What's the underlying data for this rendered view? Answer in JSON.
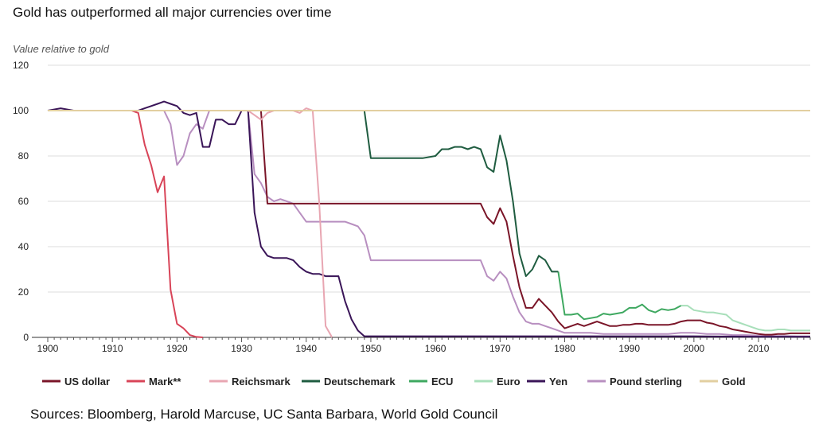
{
  "chart_data": {
    "type": "line",
    "title": "Gold has outperformed all major currencies over time",
    "ylabel": "Value relative to gold",
    "xlabel": "",
    "xlim": [
      1900,
      2018
    ],
    "ylim": [
      0,
      120
    ],
    "xticks": [
      1900,
      1910,
      1920,
      1930,
      1940,
      1950,
      1960,
      1970,
      1980,
      1990,
      2000,
      2010
    ],
    "yticks": [
      0,
      20,
      40,
      60,
      80,
      100,
      120
    ],
    "grid": "horizontal",
    "legend_position": "bottom",
    "series": [
      {
        "name": "Pound sterling",
        "color": "#b88fc0",
        "x": [
          1900,
          1905,
          1910,
          1913,
          1914,
          1917,
          1918,
          1919,
          1920,
          1921,
          1922,
          1923,
          1924,
          1925,
          1930,
          1931,
          1932,
          1933,
          1934,
          1935,
          1936,
          1937,
          1938,
          1939,
          1940,
          1943,
          1945,
          1946,
          1947,
          1948,
          1949,
          1950,
          1955,
          1960,
          1965,
          1967,
          1968,
          1969,
          1970,
          1971,
          1972,
          1973,
          1974,
          1975,
          1976,
          1977,
          1978,
          1979,
          1980,
          1982,
          1984,
          1986,
          1988,
          1990,
          1992,
          1994,
          1996,
          1998,
          2000,
          2002,
          2004,
          2006,
          2008,
          2010,
          2012,
          2014,
          2016,
          2018
        ],
        "y": [
          100,
          100,
          100,
          100,
          100,
          100,
          100,
          94,
          76,
          80,
          90,
          94,
          92,
          100,
          100,
          100,
          72,
          68,
          62,
          60,
          61,
          60,
          59,
          55,
          51,
          51,
          51,
          51,
          50,
          49,
          45,
          34,
          34,
          34,
          34,
          34,
          27,
          25,
          29,
          26,
          18,
          11,
          7,
          6,
          6,
          5,
          4,
          3,
          2,
          2,
          2,
          1.5,
          1.5,
          1.5,
          1.5,
          1.5,
          1.5,
          2,
          2,
          1.5,
          1.5,
          1,
          1,
          0.8,
          0.6,
          0.6,
          0.5,
          0.5
        ]
      },
      {
        "name": "Euro",
        "color": "#a8dfba",
        "x": [
          1998,
          1999,
          2000,
          2001,
          2002,
          2003,
          2004,
          2005,
          2006,
          2007,
          2008,
          2009,
          2010,
          2011,
          2012,
          2013,
          2014,
          2015,
          2016,
          2017,
          2018
        ],
        "y": [
          14,
          14,
          12,
          11.5,
          11,
          11,
          10.5,
          10,
          7.5,
          6.5,
          5.5,
          4.5,
          3.5,
          3,
          3,
          3.5,
          3.5,
          3,
          3,
          3,
          3
        ]
      },
      {
        "name": "ECU",
        "color": "#3ea860",
        "x": [
          1979,
          1980,
          1981,
          1982,
          1983,
          1984,
          1985,
          1986,
          1987,
          1988,
          1989,
          1990,
          1991,
          1992,
          1993,
          1994,
          1995,
          1996,
          1997,
          1998
        ],
        "y": [
          29,
          10,
          10,
          10.5,
          8,
          8.5,
          9,
          10.5,
          10,
          10.5,
          11,
          13,
          13,
          14.5,
          12,
          11,
          12.5,
          12,
          12.5,
          14
        ]
      },
      {
        "name": "Deutschemark",
        "color": "#1f5c40",
        "x": [
          1948,
          1949,
          1950,
          1955,
          1958,
          1960,
          1961,
          1962,
          1963,
          1964,
          1965,
          1966,
          1967,
          1968,
          1969,
          1970,
          1971,
          1972,
          1973,
          1974,
          1975,
          1976,
          1977,
          1978,
          1979
        ],
        "y": [
          100,
          100,
          79,
          79,
          79,
          80,
          83,
          83,
          84,
          84,
          83,
          84,
          83,
          75,
          73,
          89,
          78,
          60,
          37,
          27,
          30,
          36,
          34,
          29,
          29
        ]
      },
      {
        "name": "US dollar",
        "color": "#7a1528",
        "x": [
          1900,
          1933,
          1934,
          1935,
          1940,
          1950,
          1960,
          1967,
          1968,
          1969,
          1970,
          1971,
          1972,
          1973,
          1974,
          1975,
          1976,
          1977,
          1978,
          1979,
          1980,
          1981,
          1982,
          1983,
          1984,
          1985,
          1986,
          1987,
          1988,
          1989,
          1990,
          1991,
          1992,
          1993,
          1994,
          1995,
          1996,
          1997,
          1998,
          1999,
          2000,
          2001,
          2002,
          2003,
          2004,
          2005,
          2006,
          2007,
          2008,
          2009,
          2010,
          2011,
          2012,
          2013,
          2014,
          2015,
          2016,
          2017,
          2018
        ],
        "y": [
          100,
          100,
          59,
          59,
          59,
          59,
          59,
          59,
          53,
          50,
          57,
          51,
          36,
          22,
          13,
          13,
          17,
          14,
          11,
          7,
          4,
          5,
          6,
          5,
          6,
          7,
          6,
          5,
          5,
          5.5,
          5.5,
          6,
          6,
          5.5,
          5.5,
          5.5,
          5.5,
          6,
          7,
          7.5,
          7.5,
          7.5,
          6.5,
          6,
          5,
          4.5,
          3.5,
          3,
          2.5,
          2,
          1.5,
          1.2,
          1.2,
          1.5,
          1.5,
          1.8,
          1.8,
          1.8,
          1.8
        ]
      },
      {
        "name": "Yen",
        "color": "#3a1558",
        "x": [
          1900,
          1902,
          1904,
          1905,
          1908,
          1910,
          1912,
          1914,
          1915,
          1916,
          1917,
          1918,
          1919,
          1920,
          1921,
          1922,
          1923,
          1924,
          1925,
          1926,
          1927,
          1928,
          1929,
          1930,
          1931,
          1932,
          1933,
          1934,
          1935,
          1936,
          1937,
          1938,
          1939,
          1940,
          1941,
          1942,
          1943,
          1944,
          1945,
          1946,
          1947,
          1948,
          1949,
          1955,
          1960,
          1965,
          1970,
          1980,
          1990,
          2000,
          2010,
          2018
        ],
        "y": [
          100,
          101,
          100,
          100,
          100,
          100,
          100,
          100,
          101,
          102,
          103,
          104,
          103,
          102,
          99,
          98,
          99,
          84,
          84,
          96,
          96,
          94,
          94,
          100,
          100,
          55,
          40,
          36,
          35,
          35,
          35,
          34,
          31,
          29,
          28,
          28,
          27,
          27,
          27,
          16,
          8,
          3,
          0.5,
          0.5,
          0.5,
          0.5,
          0.5,
          0.5,
          0.5,
          0.5,
          0.3,
          0.3
        ]
      },
      {
        "name": "Reichsmark",
        "color": "#e8a6b2",
        "x": [
          1924,
          1930,
          1931,
          1932,
          1933,
          1934,
          1935,
          1938,
          1939,
          1940,
          1941,
          1942,
          1943,
          1944
        ],
        "y": [
          100,
          100,
          100,
          98,
          96,
          99,
          100,
          100,
          99,
          101,
          100,
          60,
          5,
          0
        ]
      },
      {
        "name": "Mark**",
        "color": "#d84458",
        "x": [
          1900,
          1913,
          1914,
          1915,
          1916,
          1917,
          1918,
          1919,
          1920,
          1921,
          1922,
          1923,
          1924
        ],
        "y": [
          100,
          100,
          99,
          85,
          76,
          64,
          71,
          21,
          6,
          4,
          1,
          0.2,
          0
        ]
      },
      {
        "name": "Gold",
        "color": "#e2cfa0",
        "x": [
          1900,
          2018
        ],
        "y": [
          100,
          100
        ]
      }
    ],
    "legend_order": [
      "US dollar",
      "Mark**",
      "Reichsmark",
      "Deutschemark",
      "ECU",
      "Euro",
      "Yen",
      "Pound sterling",
      "Gold"
    ]
  },
  "sources_text": "Sources: Bloomberg, Harold Marcuse, UC Santa Barbara, World Gold Council"
}
